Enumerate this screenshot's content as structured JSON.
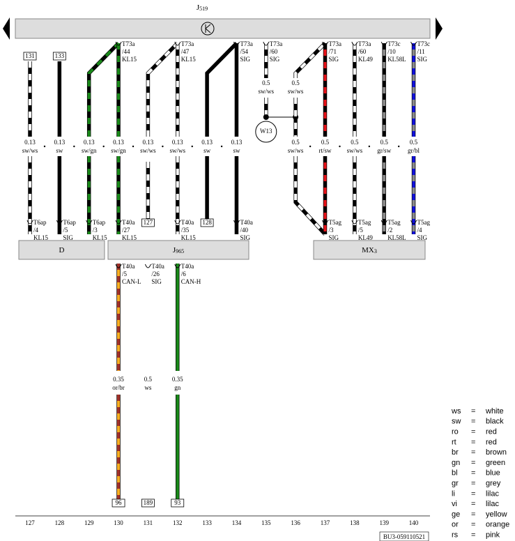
{
  "top_component": {
    "name": "J",
    "sub": "519"
  },
  "columns": [
    {
      "number": 127,
      "top": {
        "box": "131"
      },
      "wire": {
        "gauge": "0.13",
        "color": "sw/ws"
      },
      "bottom": {
        "pin": "T6ap",
        "slot": "/4",
        "signal": "KL15"
      }
    },
    {
      "number": 128,
      "top": {
        "box": "133"
      },
      "wire": {
        "gauge": "0.13",
        "color": "sw"
      },
      "bottom": {
        "pin": "T6ap",
        "slot": "/5",
        "signal": "SIG"
      }
    },
    {
      "number": 129,
      "wire": {
        "gauge": "0.13",
        "color": "sw/gn"
      },
      "bottom": {
        "pin": "T6ap",
        "slot": "/3",
        "signal": "KL15"
      }
    },
    {
      "number": 130,
      "top": {
        "pin": "T73a",
        "slot": "/44",
        "signal": "KL15"
      },
      "wire": {
        "gauge": "0.13",
        "color": "sw/gn"
      },
      "bottom": {
        "pin": "T40a",
        "slot": "/27",
        "signal": "KL15"
      }
    },
    {
      "number": 131,
      "wire": {
        "gauge": "0.13",
        "color": "sw/ws"
      },
      "bottom": {
        "box": "127"
      }
    },
    {
      "number": 132,
      "top": {
        "pin": "T73a",
        "slot": "/47",
        "signal": "KL15"
      },
      "wire": {
        "gauge": "0.13",
        "color": "sw/ws"
      },
      "bottom": {
        "pin": "T40a",
        "slot": "/35",
        "signal": "KL15"
      }
    },
    {
      "number": 133,
      "wire": {
        "gauge": "0.13",
        "color": "sw"
      },
      "bottom": {
        "box": "128"
      }
    },
    {
      "number": 134,
      "top": {
        "pin": "T73a",
        "slot": "/54",
        "signal": "SIG"
      },
      "wire": {
        "gauge": "0.13",
        "color": "sw"
      },
      "bottom": {
        "pin": "T40a",
        "slot": "/40",
        "signal": "SIG"
      }
    },
    {
      "number": 135,
      "top": {
        "pin": "T73a",
        "slot": "/60",
        "signal": "SIG"
      },
      "upper_wire": {
        "gauge": "0.5",
        "color": "sw/ws"
      },
      "splice": "W13"
    },
    {
      "number": 136,
      "upper_wire": {
        "gauge": "0.5",
        "color": "sw/ws"
      },
      "wire": {
        "gauge": "0.5",
        "color": "sw/ws"
      }
    },
    {
      "number": 137,
      "top": {
        "pin": "T73a",
        "slot": "/71",
        "signal": "SIG"
      },
      "wire": {
        "gauge": "0.5",
        "color": "rt/sw"
      },
      "bottom": {
        "pin": "T5ag",
        "slot": "/3",
        "signal": "SIG"
      }
    },
    {
      "number": 138,
      "top": {
        "pin": "T73a",
        "slot": "/60",
        "signal": "KL49"
      },
      "wire": {
        "gauge": "0.5",
        "color": "sw/ws"
      },
      "bottom": {
        "pin": "T5ag",
        "slot": "/5",
        "signal": "KL49"
      }
    },
    {
      "number": 139,
      "top": {
        "pin": "T73c",
        "slot": "/10",
        "signal": "KL58L"
      },
      "wire": {
        "gauge": "0.5",
        "color": "gr/sw"
      },
      "bottom": {
        "pin": "T5ag",
        "slot": "/2",
        "signal": "KL58L"
      }
    },
    {
      "number": 140,
      "top": {
        "pin": "T73c",
        "slot": "/11",
        "signal": "SIG"
      },
      "wire": {
        "gauge": "0.5",
        "color": "gr/bl"
      },
      "bottom": {
        "pin": "T5ag",
        "slot": "/4",
        "signal": "SIG"
      }
    }
  ],
  "components": [
    {
      "name": "D"
    },
    {
      "name": "J",
      "sub": "965"
    },
    {
      "name": "MX",
      "sub": "3"
    }
  ],
  "lower_columns": [
    {
      "top": {
        "pin": "T40a",
        "slot": "/5",
        "signal": "CAN-L"
      },
      "wire": {
        "gauge": "0.35",
        "color": "or/br"
      },
      "bottom": {
        "box": "96"
      }
    },
    {
      "top": {
        "pin": "T40a",
        "slot": "/26",
        "signal": "SIG"
      },
      "wire": {
        "gauge": "0.5",
        "color": "ws"
      },
      "bottom": {
        "box": "189"
      }
    },
    {
      "top": {
        "pin": "T40a",
        "slot": "/6",
        "signal": "CAN-H"
      },
      "wire": {
        "gauge": "0.35",
        "color": "gn"
      },
      "bottom": {
        "box": "93"
      }
    }
  ],
  "legend": {
    "separator": "=",
    "entries": [
      {
        "code": "ws",
        "name": "white"
      },
      {
        "code": "sw",
        "name": "black"
      },
      {
        "code": "ro",
        "name": "red"
      },
      {
        "code": "rt",
        "name": "red"
      },
      {
        "code": "br",
        "name": "brown"
      },
      {
        "code": "gn",
        "name": "green"
      },
      {
        "code": "bl",
        "name": "blue"
      },
      {
        "code": "gr",
        "name": "grey"
      },
      {
        "code": "li",
        "name": "lilac"
      },
      {
        "code": "vi",
        "name": "lilac"
      },
      {
        "code": "ge",
        "name": "yellow"
      },
      {
        "code": "or",
        "name": "orange"
      },
      {
        "code": "rs",
        "name": "pink"
      }
    ]
  },
  "footer_code": "BU3-059110521"
}
